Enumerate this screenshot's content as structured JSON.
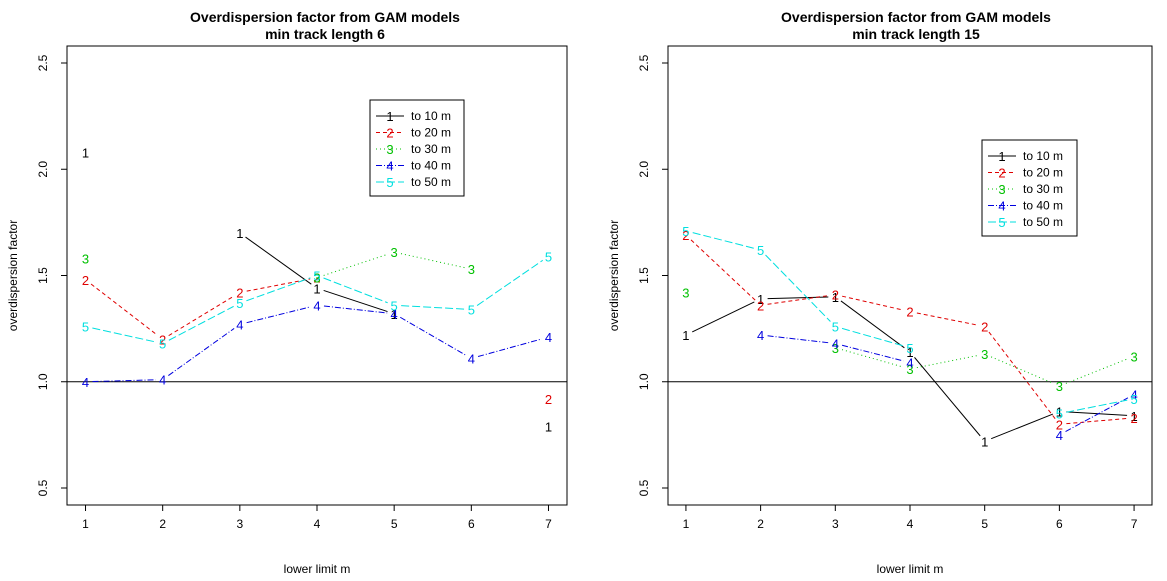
{
  "chart_data": [
    {
      "type": "line",
      "title": "Overdispersion factor from GAM models",
      "subtitle": "min track length 6",
      "xlabel": "lower limit m",
      "ylabel": "overdispersion factor",
      "x": [
        1,
        2,
        3,
        4,
        5,
        6,
        7
      ],
      "xlim": [
        1,
        7
      ],
      "ylim": [
        0.5,
        2.5
      ],
      "yticks": [
        0.5,
        1.0,
        1.5,
        2.0,
        2.5
      ],
      "ytick_labels": [
        "0.5",
        "1.0",
        "1.5",
        "2.0",
        "2.5"
      ],
      "xtick_labels": [
        "1",
        "2",
        "3",
        "4",
        "5",
        "6",
        "7"
      ],
      "reference_line": 1.0,
      "legend_position": "top-right",
      "series": [
        {
          "name": "to 10 m",
          "marker": "1",
          "color": "#000000",
          "dash": "",
          "values": [
            2.08,
            null,
            1.7,
            1.44,
            1.32,
            null,
            0.79
          ]
        },
        {
          "name": "to 20 m",
          "marker": "2",
          "color": "#DF0000",
          "dash": "4,3",
          "values": [
            1.48,
            1.2,
            1.42,
            1.49,
            null,
            null,
            0.92
          ]
        },
        {
          "name": "to 30 m",
          "marker": "3",
          "color": "#00C000",
          "dash": "1,3",
          "values": [
            1.58,
            null,
            null,
            1.49,
            1.61,
            1.53,
            null
          ]
        },
        {
          "name": "to 40 m",
          "marker": "4",
          "color": "#0000DF",
          "dash": "6,2,1,2",
          "values": [
            1.0,
            1.01,
            1.27,
            1.36,
            1.32,
            1.11,
            1.21
          ]
        },
        {
          "name": "to 50 m",
          "marker": "5",
          "color": "#00DFDF",
          "dash": "8,3",
          "values": [
            1.26,
            1.18,
            1.37,
            1.5,
            1.36,
            1.34,
            1.59
          ]
        }
      ]
    },
    {
      "type": "line",
      "title": "Overdispersion factor from GAM models",
      "subtitle": "min track length 15",
      "xlabel": "lower limit m",
      "ylabel": "overdispersion factor",
      "x": [
        1,
        2,
        3,
        4,
        5,
        6,
        7
      ],
      "xlim": [
        1,
        7
      ],
      "ylim": [
        0.5,
        2.5
      ],
      "yticks": [
        0.5,
        1.0,
        1.5,
        2.0,
        2.5
      ],
      "ytick_labels": [
        "0.5",
        "1.0",
        "1.5",
        "2.0",
        "2.5"
      ],
      "xtick_labels": [
        "1",
        "2",
        "3",
        "4",
        "5",
        "6",
        "7"
      ],
      "reference_line": 1.0,
      "legend_position": "top-right",
      "series": [
        {
          "name": "to 10 m",
          "marker": "1",
          "color": "#000000",
          "dash": "",
          "values": [
            1.22,
            1.39,
            1.4,
            1.14,
            0.72,
            0.86,
            0.84
          ]
        },
        {
          "name": "to 20 m",
          "marker": "2",
          "color": "#DF0000",
          "dash": "4,3",
          "values": [
            1.69,
            1.36,
            1.41,
            1.33,
            1.26,
            0.8,
            0.83
          ]
        },
        {
          "name": "to 30 m",
          "marker": "3",
          "color": "#00C000",
          "dash": "1,3",
          "values": [
            1.42,
            null,
            1.16,
            1.06,
            1.13,
            0.98,
            1.12
          ]
        },
        {
          "name": "to 40 m",
          "marker": "4",
          "color": "#0000DF",
          "dash": "6,2,1,2",
          "values": [
            null,
            1.22,
            1.18,
            1.09,
            null,
            0.75,
            0.94
          ]
        },
        {
          "name": "to 50 m",
          "marker": "5",
          "color": "#00DFDF",
          "dash": "8,3",
          "values": [
            1.71,
            1.62,
            1.26,
            1.16,
            null,
            0.85,
            0.92
          ]
        }
      ]
    }
  ]
}
